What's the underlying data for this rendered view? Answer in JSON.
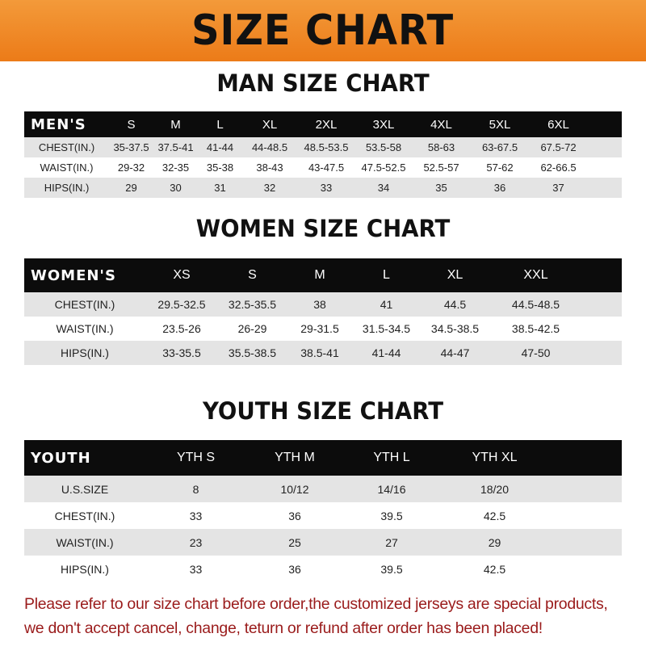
{
  "banner": {
    "title": "SIZE CHART"
  },
  "men": {
    "title": "MAN SIZE CHART",
    "header": [
      "MEN'S",
      "S",
      "M",
      "L",
      "XL",
      "2XL",
      "3XL",
      "4XL",
      "5XL",
      "6XL"
    ],
    "rows": [
      [
        "CHEST(IN.)",
        "35-37.5",
        "37.5-41",
        "41-44",
        "44-48.5",
        "48.5-53.5",
        "53.5-58",
        "58-63",
        "63-67.5",
        "67.5-72"
      ],
      [
        "WAIST(IN.)",
        "29-32",
        "32-35",
        "35-38",
        "38-43",
        "43-47.5",
        "47.5-52.5",
        "52.5-57",
        "57-62",
        "62-66.5"
      ],
      [
        "HIPS(IN.)",
        "29",
        "30",
        "31",
        "32",
        "33",
        "34",
        "35",
        "36",
        "37"
      ]
    ]
  },
  "women": {
    "title": "WOMEN SIZE CHART",
    "header": [
      "WOMEN'S",
      "XS",
      "S",
      "M",
      "L",
      "XL",
      "XXL"
    ],
    "rows": [
      [
        "CHEST(IN.)",
        "29.5-32.5",
        "32.5-35.5",
        "38",
        "41",
        "44.5",
        "44.5-48.5"
      ],
      [
        "WAIST(IN.)",
        "23.5-26",
        "26-29",
        "29-31.5",
        "31.5-34.5",
        "34.5-38.5",
        "38.5-42.5"
      ],
      [
        "HIPS(IN.)",
        "33-35.5",
        "35.5-38.5",
        "38.5-41",
        "41-44",
        "44-47",
        "47-50"
      ]
    ]
  },
  "youth": {
    "title": "YOUTH SIZE CHART",
    "header": [
      "YOUTH",
      "YTH S",
      "YTH M",
      "YTH L",
      "YTH XL"
    ],
    "rows": [
      [
        "U.S.SIZE",
        "8",
        "10/12",
        "14/16",
        "18/20"
      ],
      [
        "CHEST(IN.)",
        "33",
        "36",
        "39.5",
        "42.5"
      ],
      [
        "WAIST(IN.)",
        "23",
        "25",
        "27",
        "29"
      ],
      [
        "HIPS(IN.)",
        "33",
        "36",
        "39.5",
        "42.5"
      ]
    ]
  },
  "note": {
    "line1": "Please refer to our size chart before order,the customized jerseys are special products,",
    "line2": "we don't accept cancel, change, teturn or refund after order has been placed!"
  },
  "colors": {
    "banner": "#ec7b18",
    "header_row": "#0c0c0c",
    "stripe": "#e4e4e4",
    "note": "#9a1b1b"
  }
}
